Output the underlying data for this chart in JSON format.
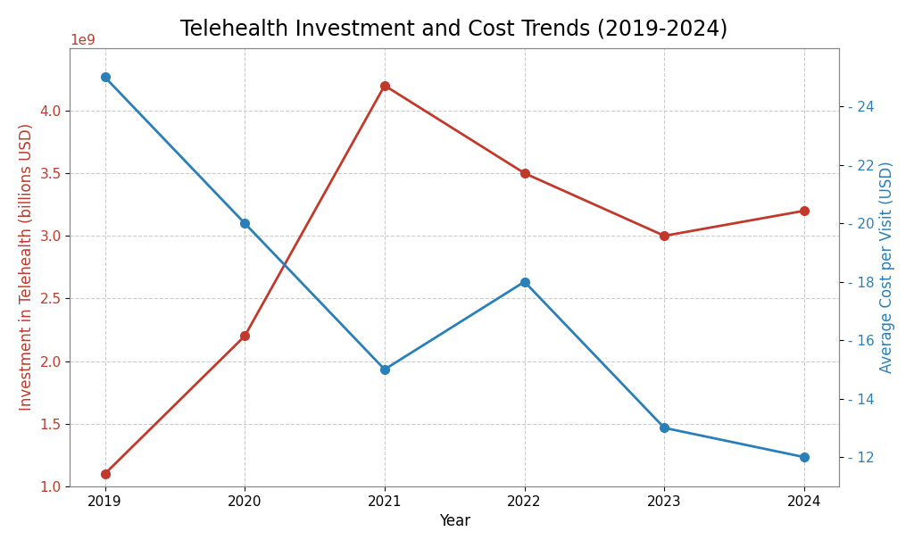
{
  "title": "Telehealth Investment and Cost Trends (2019-2024)",
  "years": [
    2019,
    2020,
    2021,
    2022,
    2023,
    2024
  ],
  "investment_billions": [
    1100000000.0,
    2200000000.0,
    4200000000.0,
    3500000000.0,
    3000000000.0,
    3200000000.0
  ],
  "avg_cost_per_visit": [
    25,
    20,
    15,
    18,
    13,
    12
  ],
  "investment_color": "#C0392B",
  "cost_color": "#2980B9",
  "ylabel_left": "Investment in Telehealth (billions USD)",
  "ylabel_right": "Average Cost per Visit (USD)",
  "xlabel": "Year",
  "ylim_left": [
    1000000000.0,
    4500000000.0
  ],
  "ylim_right": [
    11,
    26
  ],
  "yticks_left": [
    1000000000.0,
    1500000000.0,
    2000000000.0,
    2500000000.0,
    3000000000.0,
    3500000000.0,
    4000000000.0
  ],
  "yticks_right": [
    12,
    14,
    16,
    18,
    20,
    22,
    24
  ],
  "background_color": "#ffffff",
  "grid_color": "#cccccc",
  "title_fontsize": 17,
  "label_fontsize": 12,
  "tick_fontsize": 11
}
